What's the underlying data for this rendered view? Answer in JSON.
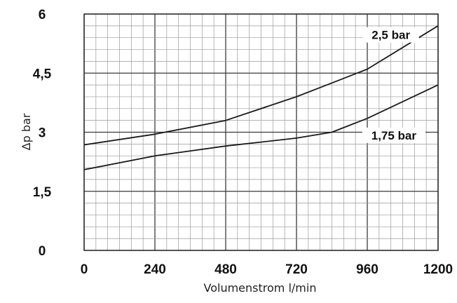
{
  "chart_data": {
    "type": "line",
    "title": "",
    "xlabel": "Volumenstrom l/min",
    "ylabel": "Δp bar",
    "xlim": [
      0,
      1200
    ],
    "ylim": [
      0,
      6
    ],
    "x_ticks": [
      "0",
      "240",
      "480",
      "720",
      "960",
      "1200"
    ],
    "y_ticks": [
      "0",
      "1,5",
      "3",
      "4,5",
      "6"
    ],
    "grid": true,
    "series": [
      {
        "name": "2,5 bar",
        "x": [
          0,
          240,
          480,
          720,
          840,
          960,
          1200
        ],
        "y": [
          2.68,
          2.95,
          3.3,
          3.9,
          4.25,
          4.6,
          5.7
        ]
      },
      {
        "name": "1,75 bar",
        "x": [
          0,
          240,
          480,
          720,
          840,
          960,
          1200
        ],
        "y": [
          2.05,
          2.4,
          2.65,
          2.85,
          3.0,
          3.35,
          4.2
        ]
      }
    ]
  }
}
